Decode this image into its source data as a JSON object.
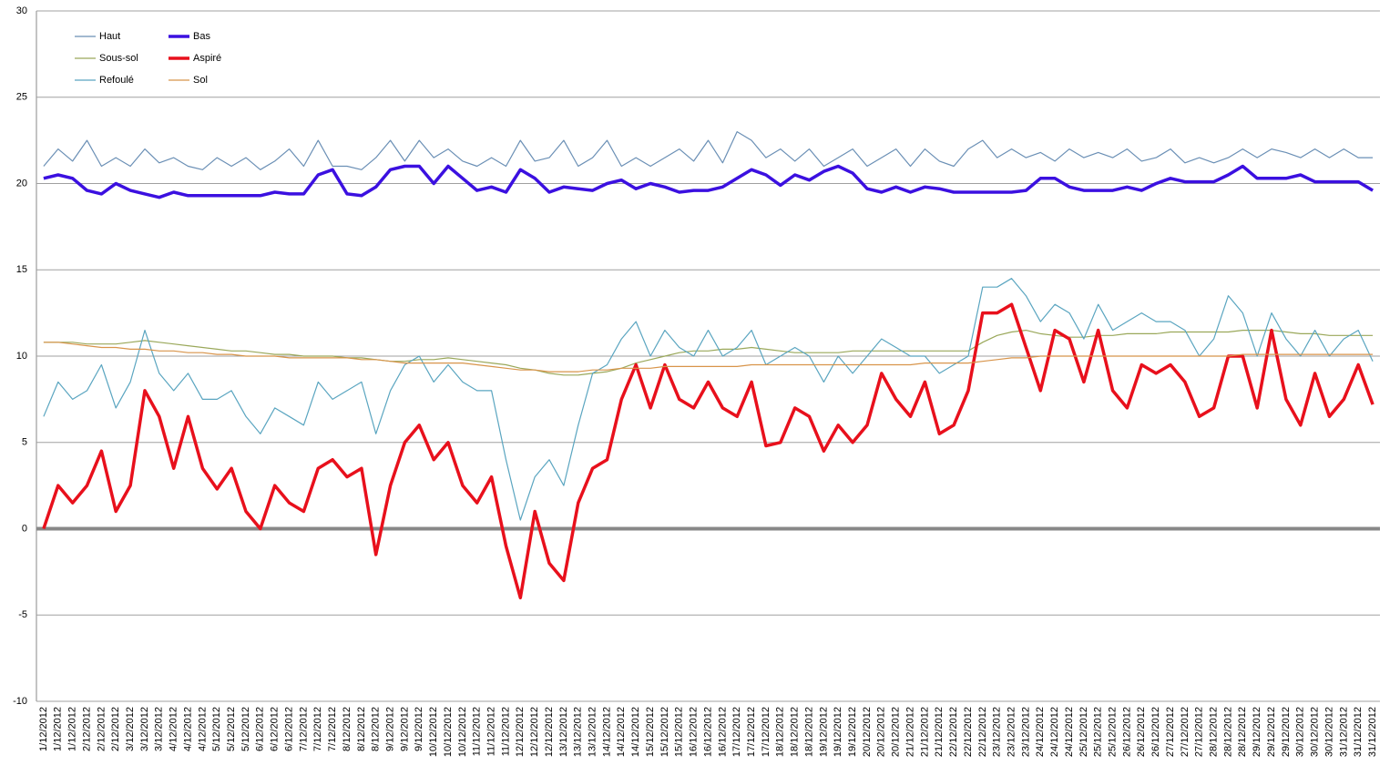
{
  "chart_data": {
    "type": "line",
    "categories": [
      "1/12/2012",
      "1/12/2012",
      "1/12/2012",
      "2/12/2012",
      "2/12/2012",
      "2/12/2012",
      "3/12/2012",
      "3/12/2012",
      "3/12/2012",
      "4/12/2012",
      "4/12/2012",
      "4/12/2012",
      "5/12/2012",
      "5/12/2012",
      "5/12/2012",
      "6/12/2012",
      "6/12/2012",
      "6/12/2012",
      "7/12/2012",
      "7/12/2012",
      "7/12/2012",
      "8/12/2012",
      "8/12/2012",
      "8/12/2012",
      "9/12/2012",
      "9/12/2012",
      "9/12/2012",
      "10/12/2012",
      "10/12/2012",
      "10/12/2012",
      "11/12/2012",
      "11/12/2012",
      "11/12/2012",
      "12/12/2012",
      "12/12/2012",
      "12/12/2012",
      "13/12/2012",
      "13/12/2012",
      "13/12/2012",
      "14/12/2012",
      "14/12/2012",
      "14/12/2012",
      "15/12/2012",
      "15/12/2012",
      "15/12/2012",
      "16/12/2012",
      "16/12/2012",
      "16/12/2012",
      "17/12/2012",
      "17/12/2012",
      "17/12/2012",
      "18/12/2012",
      "18/12/2012",
      "18/12/2012",
      "19/12/2012",
      "19/12/2012",
      "19/12/2012",
      "20/12/2012",
      "20/12/2012",
      "20/12/2012",
      "21/12/2012",
      "21/12/2012",
      "21/12/2012",
      "22/12/2012",
      "22/12/2012",
      "22/12/2012",
      "23/12/2012",
      "23/12/2012",
      "23/12/2012",
      "24/12/2012",
      "24/12/2012",
      "24/12/2012",
      "25/12/2012",
      "25/12/2012",
      "25/12/2012",
      "26/12/2012",
      "26/12/2012",
      "26/12/2012",
      "27/12/2012",
      "27/12/2012",
      "27/12/2012",
      "28/12/2012",
      "28/12/2012",
      "28/12/2012",
      "29/12/2012",
      "29/12/2012",
      "29/12/2012",
      "30/12/2012",
      "30/12/2012",
      "30/12/2012",
      "31/12/2012",
      "31/12/2012",
      "31/12/2012"
    ],
    "series": [
      {
        "name": "Haut",
        "color": "#6a8fb5",
        "values": [
          21,
          22,
          21.3,
          22.5,
          21,
          21.5,
          21,
          22,
          21.2,
          21.5,
          21,
          20.8,
          21.5,
          21,
          21.5,
          20.8,
          21.3,
          22,
          21,
          22.5,
          21,
          21,
          20.8,
          21.5,
          22.5,
          21.3,
          22.5,
          21.5,
          22,
          21.3,
          21,
          21.5,
          21,
          22.5,
          21.3,
          21.5,
          22.5,
          21,
          21.5,
          22.5,
          21,
          21.5,
          21,
          21.5,
          22,
          21.3,
          22.5,
          21.2,
          23,
          22.5,
          21.5,
          22,
          21.3,
          22,
          21,
          21.5,
          22,
          21,
          21.5,
          22,
          21,
          22,
          21.3,
          21,
          22,
          22.5,
          21.5,
          22,
          21.5,
          21.8,
          21.3,
          22,
          21.5,
          21.8,
          21.5,
          22,
          21.3,
          21.5,
          22,
          21.2,
          21.5,
          21.2,
          21.5,
          22,
          21.5,
          22,
          21.8,
          21.5,
          22,
          21.5,
          22,
          21.5,
          21.5
        ]
      },
      {
        "name": "Bas",
        "color": "#3b10e0",
        "values": [
          20.3,
          20.5,
          20.3,
          19.6,
          19.4,
          20,
          19.6,
          19.4,
          19.2,
          19.5,
          19.3,
          19.3,
          19.3,
          19.3,
          19.3,
          19.3,
          19.5,
          19.4,
          19.4,
          20.5,
          20.8,
          19.4,
          19.3,
          19.8,
          20.8,
          21,
          21,
          20,
          21,
          20.3,
          19.6,
          19.8,
          19.5,
          20.8,
          20.3,
          19.5,
          19.8,
          19.7,
          19.6,
          20,
          20.2,
          19.7,
          20,
          19.8,
          19.5,
          19.6,
          19.6,
          19.8,
          20.3,
          20.8,
          20.5,
          19.9,
          20.5,
          20.2,
          20.7,
          21,
          20.6,
          19.7,
          19.5,
          19.8,
          19.5,
          19.8,
          19.7,
          19.5,
          19.5,
          19.5,
          19.5,
          19.5,
          19.6,
          20.3,
          20.3,
          19.8,
          19.6,
          19.6,
          19.6,
          19.8,
          19.6,
          20,
          20.3,
          20.1,
          20.1,
          20.1,
          20.5,
          21,
          20.3,
          20.3,
          20.3,
          20.5,
          20.1,
          20.1,
          20.1,
          20.1,
          19.6
        ]
      },
      {
        "name": "Sous-sol",
        "color": "#9aa85a",
        "values": [
          10.8,
          10.8,
          10.8,
          10.7,
          10.7,
          10.7,
          10.8,
          10.9,
          10.8,
          10.7,
          10.6,
          10.5,
          10.4,
          10.3,
          10.3,
          10.2,
          10.1,
          10.1,
          10,
          10,
          10,
          9.9,
          9.9,
          9.8,
          9.7,
          9.7,
          9.8,
          9.8,
          9.9,
          9.8,
          9.7,
          9.6,
          9.5,
          9.3,
          9.2,
          9,
          8.9,
          8.9,
          9,
          9.1,
          9.3,
          9.6,
          9.8,
          10,
          10.2,
          10.3,
          10.3,
          10.4,
          10.4,
          10.5,
          10.4,
          10.3,
          10.2,
          10.2,
          10.2,
          10.2,
          10.3,
          10.3,
          10.3,
          10.3,
          10.3,
          10.3,
          10.3,
          10.3,
          10.3,
          10.8,
          11.2,
          11.4,
          11.5,
          11.3,
          11.2,
          11.1,
          11.1,
          11.2,
          11.2,
          11.3,
          11.3,
          11.3,
          11.4,
          11.4,
          11.4,
          11.4,
          11.4,
          11.5,
          11.5,
          11.5,
          11.4,
          11.3,
          11.3,
          11.2,
          11.2,
          11.2,
          11.2
        ]
      },
      {
        "name": "Aspiré",
        "color": "#e8101c",
        "values": [
          0,
          2.5,
          1.5,
          2.5,
          4.5,
          1,
          2.5,
          8,
          6.5,
          3.5,
          6.5,
          3.5,
          2.3,
          3.5,
          1,
          0,
          2.5,
          1.5,
          1,
          3.5,
          4,
          3,
          3.5,
          -1.5,
          2.5,
          5,
          6,
          4,
          5,
          2.5,
          1.5,
          3,
          -1,
          -4,
          1,
          -2,
          -3,
          1.5,
          3.5,
          4,
          7.5,
          9.5,
          7,
          9.5,
          7.5,
          7,
          8.5,
          7,
          6.5,
          8.5,
          4.8,
          5,
          7,
          6.5,
          4.5,
          6,
          5,
          6,
          9,
          7.5,
          6.5,
          8.5,
          5.5,
          6,
          8,
          12.5,
          12.5,
          13,
          10.5,
          8,
          11.5,
          11,
          8.5,
          11.5,
          8,
          7,
          9.5,
          9,
          9.5,
          8.5,
          6.5,
          7,
          10,
          10,
          7,
          11.5,
          7.5,
          6,
          9,
          6.5,
          7.5,
          9.5,
          7.2
        ]
      },
      {
        "name": "Refoulé",
        "color": "#5aa5c0",
        "values": [
          6.5,
          8.5,
          7.5,
          8,
          9.5,
          7,
          8.5,
          11.5,
          9,
          8,
          9,
          7.5,
          7.5,
          8,
          6.5,
          5.5,
          7,
          6.5,
          6,
          8.5,
          7.5,
          8,
          8.5,
          5.5,
          8,
          9.5,
          10,
          8.5,
          9.5,
          8.5,
          8,
          8,
          4,
          0.5,
          3,
          4,
          2.5,
          6,
          9,
          9.5,
          11,
          12,
          10,
          11.5,
          10.5,
          10,
          11.5,
          10,
          10.5,
          11.5,
          9.5,
          10,
          10.5,
          10,
          8.5,
          10,
          9,
          10,
          11,
          10.5,
          10,
          10,
          9,
          9.5,
          10,
          14,
          14,
          14.5,
          13.5,
          12,
          13,
          12.5,
          11,
          13,
          11.5,
          12,
          12.5,
          12,
          12,
          11.5,
          10,
          11,
          13.5,
          12.5,
          10,
          12.5,
          11,
          10,
          11.5,
          10,
          11,
          11.5,
          9.7
        ]
      },
      {
        "name": "Sol",
        "color": "#d8944a",
        "values": [
          10.8,
          10.8,
          10.7,
          10.6,
          10.5,
          10.5,
          10.4,
          10.4,
          10.3,
          10.3,
          10.2,
          10.2,
          10.1,
          10.1,
          10,
          10,
          10,
          9.9,
          9.9,
          9.9,
          9.9,
          9.9,
          9.8,
          9.8,
          9.7,
          9.6,
          9.6,
          9.6,
          9.6,
          9.6,
          9.5,
          9.4,
          9.3,
          9.2,
          9.2,
          9.1,
          9.1,
          9.1,
          9.2,
          9.2,
          9.3,
          9.3,
          9.3,
          9.4,
          9.4,
          9.4,
          9.4,
          9.4,
          9.4,
          9.5,
          9.5,
          9.5,
          9.5,
          9.5,
          9.5,
          9.5,
          9.5,
          9.5,
          9.5,
          9.5,
          9.5,
          9.6,
          9.6,
          9.6,
          9.6,
          9.7,
          9.8,
          9.9,
          9.9,
          10,
          10,
          10,
          10,
          10,
          10,
          10,
          10,
          10,
          10,
          10,
          10,
          10,
          10,
          10.1,
          10.1,
          10.1,
          10.1,
          10.1,
          10.1,
          10.1,
          10.1,
          10.1,
          10.1
        ]
      }
    ],
    "ylim": [
      -10,
      30
    ],
    "yticks": [
      -10,
      -5,
      0,
      5,
      10,
      15,
      20,
      25,
      30
    ],
    "grid": true
  }
}
